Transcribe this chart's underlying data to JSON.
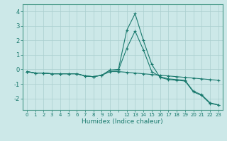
{
  "x": [
    0,
    1,
    2,
    3,
    4,
    5,
    6,
    7,
    8,
    9,
    10,
    11,
    12,
    13,
    14,
    15,
    16,
    17,
    18,
    19,
    20,
    21,
    22,
    23
  ],
  "line1": [
    -0.15,
    -0.25,
    -0.25,
    -0.3,
    -0.3,
    -0.3,
    -0.3,
    -0.45,
    -0.5,
    -0.4,
    -0.05,
    0.0,
    2.7,
    3.85,
    2.0,
    0.35,
    -0.55,
    -0.7,
    -0.75,
    -0.8,
    -1.55,
    -1.8,
    -2.35,
    -2.45
  ],
  "line2": [
    -0.15,
    -0.25,
    -0.25,
    -0.3,
    -0.3,
    -0.3,
    -0.3,
    -0.45,
    -0.5,
    -0.4,
    -0.05,
    -0.05,
    1.45,
    2.65,
    1.35,
    -0.15,
    -0.5,
    -0.65,
    -0.7,
    -0.75,
    -1.5,
    -1.75,
    -2.3,
    -2.45
  ],
  "line3": [
    -0.15,
    -0.25,
    -0.25,
    -0.3,
    -0.3,
    -0.3,
    -0.3,
    -0.45,
    -0.5,
    -0.4,
    -0.15,
    -0.15,
    -0.2,
    -0.25,
    -0.3,
    -0.35,
    -0.4,
    -0.45,
    -0.5,
    -0.55,
    -0.6,
    -0.65,
    -0.7,
    -0.75
  ],
  "line_color": "#1a7a6e",
  "bg_color": "#cce8e8",
  "grid_color": "#aacfcf",
  "xlabel": "Humidex (Indice chaleur)",
  "yticks": [
    -2,
    -1,
    0,
    1,
    2,
    3,
    4
  ],
  "xtick_labels": [
    "0",
    "1",
    "2",
    "3",
    "4",
    "5",
    "6",
    "7",
    "8",
    "9",
    "10",
    "",
    "12",
    "13",
    "14",
    "15",
    "16",
    "17",
    "18",
    "19",
    "20",
    "21",
    "22",
    "23"
  ],
  "ylim": [
    -2.8,
    4.5
  ],
  "xlim": [
    -0.5,
    23.5
  ]
}
